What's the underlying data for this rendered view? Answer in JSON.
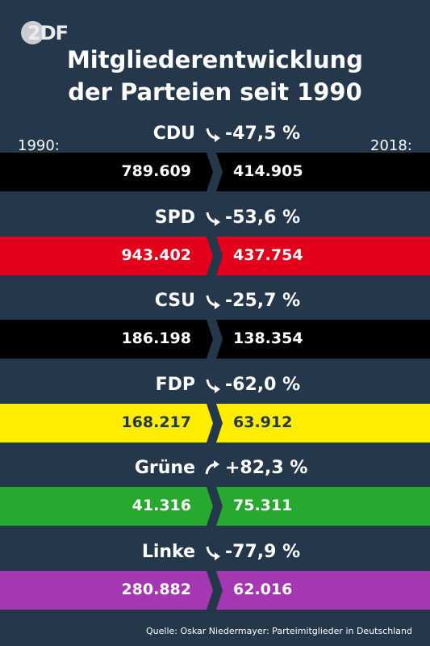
{
  "logo_text": "2DF",
  "title_line1": "Mitgliederentwicklung",
  "title_line2": "der Parteien seit 1990",
  "label_1990": "1990:",
  "label_2018": "2018:",
  "source": "Quelle: Oskar Niedermayer: Parteimitglieder in Deutschland",
  "colors": {
    "background": "#24374b",
    "CDU": "#000000",
    "SPD": "#e3001b",
    "CSU": "#000000",
    "FDP": "#ffed00",
    "Grüne": "#27a82e",
    "Linke": "#a637b3"
  },
  "chart_data": {
    "type": "table",
    "title": "Mitgliederentwicklung der Parteien seit 1990",
    "columns": [
      "1990:",
      "2018:"
    ],
    "rows": [
      {
        "party": "CDU",
        "change": "-47,5 %",
        "trend": "down",
        "v1990": "789.609",
        "v2018": "414.905"
      },
      {
        "party": "SPD",
        "change": "-53,6 %",
        "trend": "down",
        "v1990": "943.402",
        "v2018": "437.754"
      },
      {
        "party": "CSU",
        "change": "-25,7 %",
        "trend": "down",
        "v1990": "186.198",
        "v2018": "138.354"
      },
      {
        "party": "FDP",
        "change": "-62,0 %",
        "trend": "down",
        "v1990": "168.217",
        "v2018": "63.912"
      },
      {
        "party": "Grüne",
        "change": "+82,3 %",
        "trend": "up",
        "v1990": "41.316",
        "v2018": "75.311"
      },
      {
        "party": "Linke",
        "change": "-77,9 %",
        "trend": "down",
        "v1990": "280.882",
        "v2018": "62.016"
      }
    ]
  }
}
